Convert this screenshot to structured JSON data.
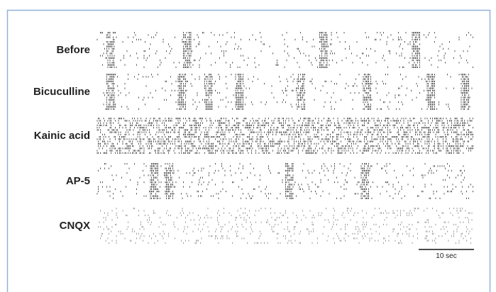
{
  "panels": [
    {
      "label": "Before"
    },
    {
      "label": "Bicuculline"
    },
    {
      "label": "Kainic acid"
    },
    {
      "label": "AP-5"
    },
    {
      "label": "CNQX"
    }
  ],
  "scale_bar": {
    "label": "10 sec"
  }
}
